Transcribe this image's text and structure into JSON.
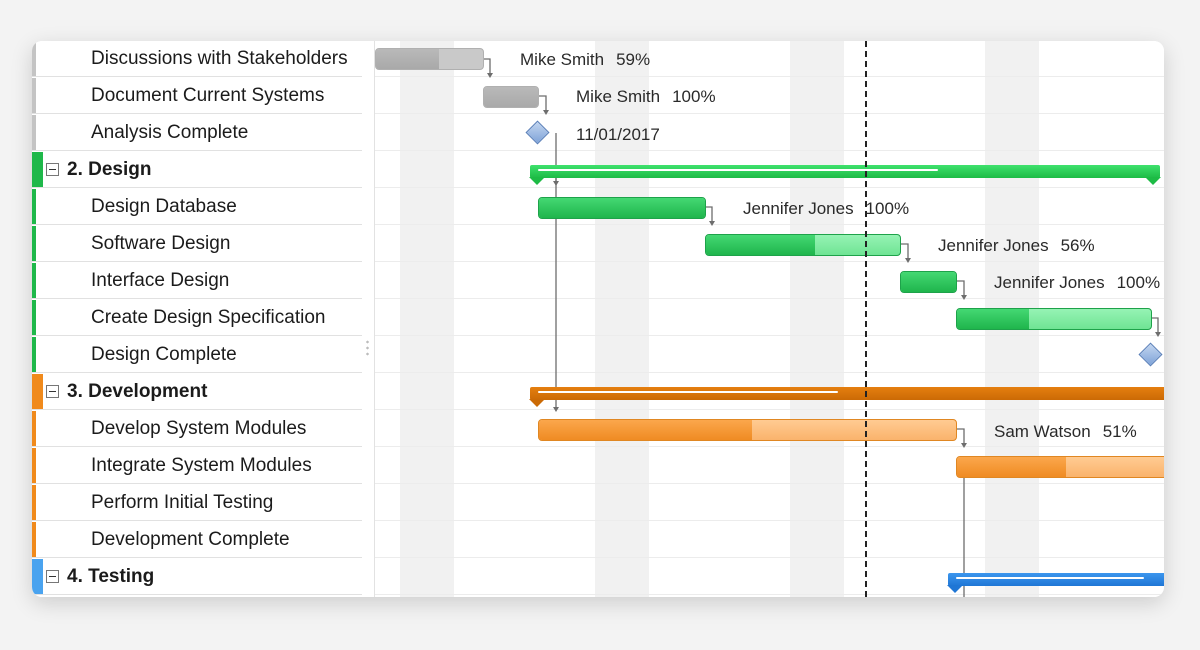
{
  "tasks": [
    {
      "id": "r0",
      "type": "task",
      "phase": "analysis",
      "label": "Discussions with Stakeholders",
      "assignee": "Mike Smith",
      "percent": "59%",
      "progress": 0.59
    },
    {
      "id": "r1",
      "type": "task",
      "phase": "analysis",
      "label": "Document Current Systems",
      "assignee": "Mike Smith",
      "percent": "100%",
      "progress": 1.0
    },
    {
      "id": "r2",
      "type": "milestone",
      "phase": "analysis",
      "label": "Analysis Complete",
      "date": "11/01/2017"
    },
    {
      "id": "r3",
      "type": "group",
      "phase": "design",
      "label": "2. Design",
      "progress": 0.65
    },
    {
      "id": "r4",
      "type": "task",
      "phase": "design",
      "label": "Design Database",
      "assignee": "Jennifer Jones",
      "percent": "100%",
      "progress": 1.0
    },
    {
      "id": "r5",
      "type": "task",
      "phase": "design",
      "label": "Software Design",
      "assignee": "Jennifer Jones",
      "percent": "56%",
      "progress": 0.56
    },
    {
      "id": "r6",
      "type": "task",
      "phase": "design",
      "label": "Interface Design",
      "assignee": "Jennifer Jones",
      "percent": "100%",
      "progress": 1.0
    },
    {
      "id": "r7",
      "type": "task",
      "phase": "design",
      "label": "Create Design Specification",
      "progress": 0.37
    },
    {
      "id": "r8",
      "type": "milestone",
      "phase": "design",
      "label": "Design Complete"
    },
    {
      "id": "r9",
      "type": "group",
      "phase": "development",
      "label": "3. Development",
      "progress": 0.5
    },
    {
      "id": "r10",
      "type": "task",
      "phase": "development",
      "label": "Develop System Modules",
      "assignee": "Sam Watson",
      "percent": "51%",
      "progress": 0.51
    },
    {
      "id": "r11",
      "type": "task",
      "phase": "development",
      "label": "Integrate System Modules",
      "progress": 0.5
    },
    {
      "id": "r12",
      "type": "task",
      "phase": "development",
      "label": "Perform Initial Testing"
    },
    {
      "id": "r13",
      "type": "milestone",
      "phase": "development",
      "label": "Development Complete"
    },
    {
      "id": "r14",
      "type": "group",
      "phase": "testing",
      "label": "4. Testing",
      "progress": 0.9
    }
  ],
  "colors": {
    "analysis": "#c4c4c4",
    "design": "#1fb84a",
    "development": "#f08a1c",
    "testing": "#4aa3ef",
    "today_line": "#222222"
  },
  "icons": {
    "collapse": "minus-square-icon",
    "milestone": "diamond-icon",
    "resize": "splitter-handle-icon"
  }
}
